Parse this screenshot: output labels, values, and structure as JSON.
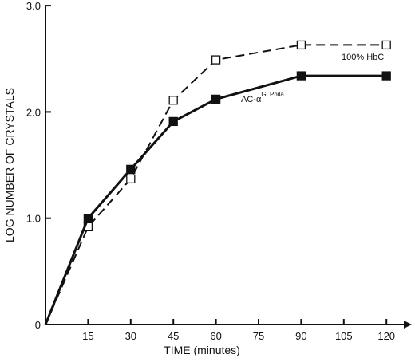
{
  "chart_data": {
    "type": "line",
    "title": "",
    "xlabel": "TIME (minutes)",
    "ylabel": "LOG NUMBER OF CRYSTALS",
    "xlim": [
      0,
      125
    ],
    "ylim": [
      0,
      3.0
    ],
    "x_ticks": [
      15,
      30,
      45,
      60,
      75,
      90,
      105,
      120
    ],
    "x_tick_labels": [
      "15",
      "30",
      "45",
      "60",
      "75",
      "90",
      "105",
      "120"
    ],
    "y_ticks": [
      0,
      1.0,
      2.0,
      3.0
    ],
    "y_tick_labels": [
      "0",
      "1.0",
      "2.0",
      "3.0"
    ],
    "grid": false,
    "series": [
      {
        "name": "100% HbC",
        "line_style": "dashed",
        "marker": "open-square",
        "color": "#111111",
        "x": [
          0,
          15,
          30,
          45,
          60,
          90,
          120
        ],
        "y": [
          0,
          0.92,
          1.37,
          2.11,
          2.49,
          2.63,
          2.63
        ]
      },
      {
        "name": "AC-α",
        "name_superscript": "G. Phila",
        "line_style": "solid",
        "marker": "filled-square",
        "color": "#111111",
        "x": [
          0,
          15,
          30,
          45,
          60,
          90,
          120
        ],
        "y": [
          0,
          1.0,
          1.46,
          1.91,
          2.12,
          2.34,
          2.34
        ]
      }
    ]
  }
}
